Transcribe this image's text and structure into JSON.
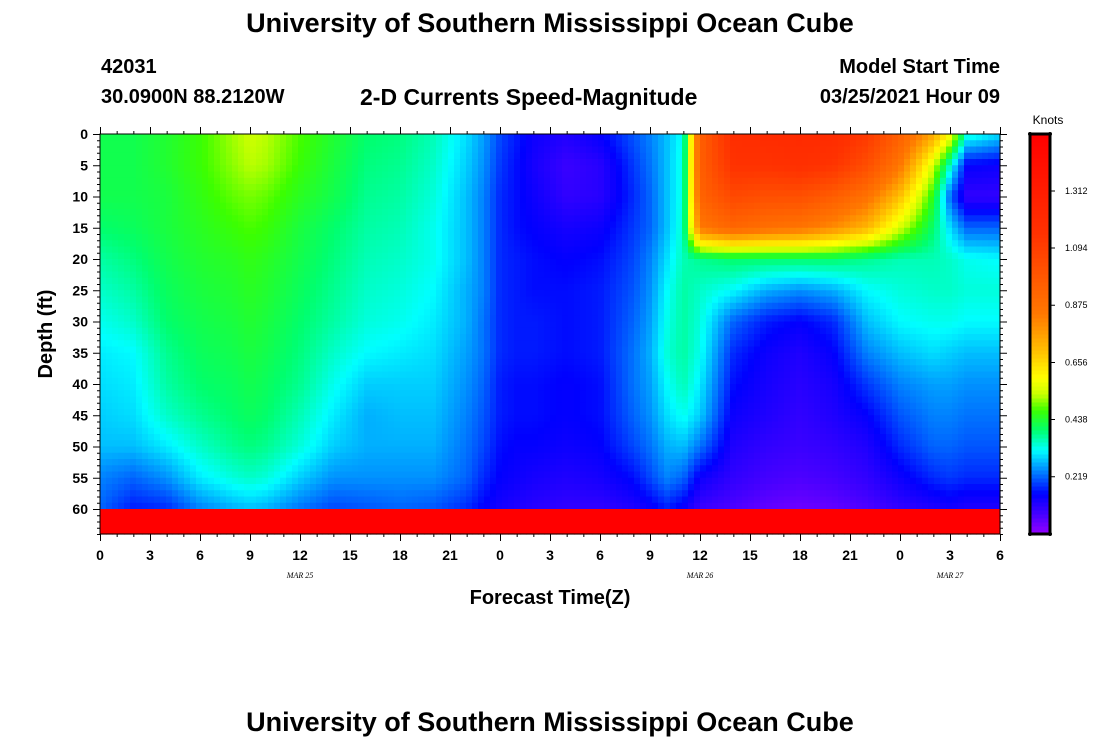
{
  "header": {
    "title": "University of Southern Mississippi Ocean Cube",
    "station_id": "42031",
    "coords": "30.0900N 88.2120W",
    "plot_title": "2-D Currents Speed-Magnitude",
    "model_label": "Model Start Time",
    "model_time": "03/25/2021 Hour 09"
  },
  "footer": {
    "title": "University of Southern Mississippi Ocean Cube"
  },
  "chart_data": {
    "type": "heatmap",
    "title": "2-D Currents Speed-Magnitude",
    "xlabel": "Forecast Time(Z)",
    "ylabel": "Depth (ft)",
    "x_range": [
      0,
      54
    ],
    "y_range": [
      0,
      64
    ],
    "x_tick_labels": [
      "0",
      "3",
      "6",
      "9",
      "12",
      "15",
      "18",
      "21",
      "0",
      "3",
      "6",
      "9",
      "12",
      "15",
      "18",
      "21",
      "0",
      "3",
      "6"
    ],
    "y_tick_labels": [
      "0",
      "5",
      "10",
      "15",
      "20",
      "25",
      "30",
      "35",
      "40",
      "45",
      "50",
      "55",
      "60"
    ],
    "y_tick_values": [
      0,
      5,
      10,
      15,
      20,
      25,
      30,
      35,
      40,
      45,
      50,
      55,
      60
    ],
    "date_labels": [
      {
        "label": "MAR 25",
        "hour": 12
      },
      {
        "label": "MAR 26",
        "hour": 36
      },
      {
        "label": "MAR 27",
        "hour": 51
      }
    ],
    "colorbar": {
      "units": "Knots",
      "min": 0.0,
      "max": 1.53,
      "tick_labels": [
        "1.312",
        "1.094",
        "0.875",
        "0.656",
        "0.438",
        "0.219"
      ],
      "tick_values": [
        1.312,
        1.094,
        0.875,
        0.656,
        0.438,
        0.219
      ]
    },
    "depth_levels_ft": [
      0,
      5,
      10,
      15,
      20,
      25,
      30,
      35,
      40,
      45,
      50,
      55,
      60,
      64
    ],
    "hours": [
      0,
      2,
      4,
      6,
      8,
      9,
      10,
      12,
      14,
      16,
      18,
      20,
      22,
      23,
      24,
      25,
      26,
      28,
      30,
      32,
      33,
      34,
      35,
      36,
      38,
      40,
      42,
      44,
      46,
      48,
      50,
      51,
      52,
      54
    ],
    "speed_knots": [
      [
        0.42,
        0.42,
        0.42,
        0.4,
        0.37,
        0.35,
        0.33,
        0.31,
        0.3,
        0.29,
        0.28,
        0.24,
        0.22
      ],
      [
        0.42,
        0.42,
        0.42,
        0.41,
        0.39,
        0.37,
        0.35,
        0.32,
        0.31,
        0.3,
        0.28,
        0.22,
        0.17
      ],
      [
        0.44,
        0.44,
        0.43,
        0.43,
        0.42,
        0.41,
        0.4,
        0.38,
        0.37,
        0.35,
        0.31,
        0.25,
        0.18
      ],
      [
        0.47,
        0.47,
        0.46,
        0.45,
        0.44,
        0.43,
        0.42,
        0.41,
        0.4,
        0.38,
        0.35,
        0.31,
        0.24
      ],
      [
        0.52,
        0.51,
        0.49,
        0.47,
        0.45,
        0.44,
        0.43,
        0.42,
        0.41,
        0.4,
        0.38,
        0.34,
        0.27
      ],
      [
        0.54,
        0.53,
        0.5,
        0.48,
        0.46,
        0.45,
        0.44,
        0.43,
        0.42,
        0.41,
        0.39,
        0.35,
        0.28
      ],
      [
        0.53,
        0.52,
        0.49,
        0.47,
        0.45,
        0.44,
        0.43,
        0.42,
        0.41,
        0.4,
        0.38,
        0.34,
        0.27
      ],
      [
        0.48,
        0.47,
        0.45,
        0.43,
        0.42,
        0.41,
        0.4,
        0.39,
        0.38,
        0.36,
        0.34,
        0.29,
        0.23
      ],
      [
        0.44,
        0.43,
        0.42,
        0.4,
        0.39,
        0.38,
        0.37,
        0.35,
        0.33,
        0.31,
        0.29,
        0.25,
        0.2
      ],
      [
        0.4,
        0.39,
        0.38,
        0.37,
        0.36,
        0.35,
        0.34,
        0.32,
        0.29,
        0.27,
        0.27,
        0.25,
        0.21
      ],
      [
        0.39,
        0.38,
        0.37,
        0.36,
        0.35,
        0.34,
        0.33,
        0.31,
        0.29,
        0.28,
        0.27,
        0.25,
        0.22
      ],
      [
        0.36,
        0.35,
        0.34,
        0.33,
        0.33,
        0.32,
        0.31,
        0.3,
        0.29,
        0.28,
        0.27,
        0.25,
        0.21
      ],
      [
        0.3,
        0.29,
        0.28,
        0.28,
        0.28,
        0.27,
        0.27,
        0.26,
        0.25,
        0.24,
        0.23,
        0.22,
        0.18
      ],
      [
        0.26,
        0.25,
        0.24,
        0.24,
        0.24,
        0.24,
        0.23,
        0.23,
        0.22,
        0.21,
        0.2,
        0.18,
        0.15
      ],
      [
        0.2,
        0.19,
        0.18,
        0.18,
        0.18,
        0.18,
        0.18,
        0.18,
        0.17,
        0.17,
        0.16,
        0.15,
        0.13
      ],
      [
        0.17,
        0.16,
        0.16,
        0.16,
        0.17,
        0.17,
        0.17,
        0.17,
        0.16,
        0.16,
        0.15,
        0.14,
        0.12
      ],
      [
        0.14,
        0.13,
        0.14,
        0.15,
        0.16,
        0.16,
        0.17,
        0.17,
        0.16,
        0.16,
        0.15,
        0.13,
        0.11
      ],
      [
        0.12,
        0.09,
        0.1,
        0.13,
        0.15,
        0.16,
        0.16,
        0.16,
        0.15,
        0.15,
        0.14,
        0.12,
        0.1
      ],
      [
        0.15,
        0.11,
        0.11,
        0.14,
        0.16,
        0.17,
        0.17,
        0.17,
        0.16,
        0.16,
        0.15,
        0.13,
        0.1
      ],
      [
        0.21,
        0.19,
        0.18,
        0.19,
        0.2,
        0.21,
        0.22,
        0.23,
        0.23,
        0.22,
        0.2,
        0.16,
        0.12
      ],
      [
        0.24,
        0.23,
        0.22,
        0.22,
        0.24,
        0.25,
        0.26,
        0.27,
        0.26,
        0.25,
        0.23,
        0.2,
        0.14
      ],
      [
        0.28,
        0.28,
        0.28,
        0.28,
        0.3,
        0.32,
        0.33,
        0.34,
        0.32,
        0.3,
        0.27,
        0.24,
        0.17
      ],
      [
        0.33,
        0.34,
        0.34,
        0.35,
        0.36,
        0.37,
        0.37,
        0.37,
        0.36,
        0.33,
        0.28,
        0.22,
        0.14
      ],
      [
        0.95,
        0.95,
        0.93,
        0.85,
        0.38,
        0.35,
        0.34,
        0.33,
        0.31,
        0.29,
        0.23,
        0.14,
        0.09
      ],
      [
        1.18,
        1.15,
        1.05,
        0.92,
        0.4,
        0.32,
        0.22,
        0.18,
        0.16,
        0.14,
        0.12,
        0.1,
        0.07
      ],
      [
        1.2,
        1.15,
        1.02,
        0.88,
        0.4,
        0.27,
        0.17,
        0.14,
        0.13,
        0.12,
        0.1,
        0.08,
        0.05
      ],
      [
        1.21,
        1.17,
        1.02,
        0.86,
        0.4,
        0.25,
        0.15,
        0.12,
        0.11,
        0.1,
        0.09,
        0.07,
        0.04
      ],
      [
        1.2,
        1.14,
        0.96,
        0.8,
        0.4,
        0.27,
        0.18,
        0.15,
        0.13,
        0.12,
        0.1,
        0.08,
        0.05
      ],
      [
        1.12,
        1.03,
        0.87,
        0.72,
        0.38,
        0.32,
        0.28,
        0.24,
        0.19,
        0.15,
        0.12,
        0.1,
        0.07
      ],
      [
        0.95,
        0.85,
        0.7,
        0.55,
        0.36,
        0.34,
        0.32,
        0.28,
        0.24,
        0.21,
        0.18,
        0.14,
        0.1
      ],
      [
        0.75,
        0.55,
        0.45,
        0.4,
        0.36,
        0.35,
        0.33,
        0.3,
        0.26,
        0.24,
        0.22,
        0.18,
        0.12
      ],
      [
        0.6,
        0.35,
        0.22,
        0.3,
        0.35,
        0.35,
        0.33,
        0.29,
        0.26,
        0.24,
        0.22,
        0.19,
        0.13
      ],
      [
        0.35,
        0.15,
        0.1,
        0.22,
        0.33,
        0.34,
        0.32,
        0.28,
        0.25,
        0.23,
        0.21,
        0.18,
        0.12
      ],
      [
        0.3,
        0.14,
        0.1,
        0.22,
        0.32,
        0.34,
        0.32,
        0.28,
        0.25,
        0.23,
        0.21,
        0.18,
        0.12
      ]
    ]
  },
  "colors": {
    "background": "#ffffff",
    "axis": "#000000",
    "colorbar_border": "#000000"
  }
}
